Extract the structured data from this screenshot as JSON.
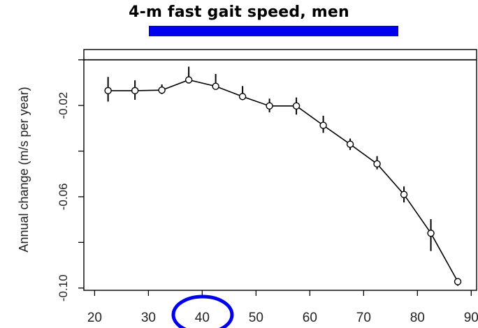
{
  "title": "4-m fast gait speed, men",
  "colors": {
    "highlight": "#0000ee",
    "ink": "#000000",
    "background": "#ffffff"
  },
  "chart_data": {
    "type": "line",
    "title": "4-m fast gait speed, men",
    "xlabel": "",
    "ylabel": "Annual change (m/s per year)",
    "xlim": [
      18,
      91
    ],
    "ylim": [
      -0.101,
      0.0045
    ],
    "xticks": [
      20,
      30,
      40,
      50,
      60,
      70,
      80,
      90
    ],
    "xtick_labels": [
      "20",
      "30",
      "40",
      "50",
      "60",
      "70",
      "80",
      "90"
    ],
    "yticks": [
      -0.02,
      -0.06,
      -0.1
    ],
    "ytick_labels": [
      "-0.02",
      "-0.06",
      "-0.10"
    ],
    "reference_line_y": 0,
    "grid": false,
    "marker": "open-circle",
    "annotations": {
      "underline_title": true,
      "circled_xtick": "40"
    },
    "series": [
      {
        "x": [
          22.5,
          27.5,
          32.5,
          37.5,
          42.5,
          47.5,
          52.5,
          57.5,
          62.5,
          67.5,
          72.5,
          77.5,
          82.5,
          87.5
        ],
        "y": [
          -0.0135,
          -0.0135,
          -0.0133,
          -0.0088,
          -0.0116,
          -0.0161,
          -0.0202,
          -0.0202,
          -0.0287,
          -0.037,
          -0.0456,
          -0.059,
          -0.076,
          -0.0972
        ],
        "ci_low": [
          -0.0183,
          -0.0175,
          -0.015,
          -0.0085,
          -0.0118,
          -0.0175,
          -0.023,
          -0.024,
          -0.032,
          -0.0395,
          -0.048,
          -0.0625,
          -0.0838,
          -0.099
        ],
        "ci_high": [
          -0.0075,
          -0.009,
          -0.0108,
          -0.003,
          -0.0062,
          -0.0115,
          -0.017,
          -0.0165,
          -0.0245,
          -0.0345,
          -0.0422,
          -0.0555,
          -0.0698,
          -0.096
        ]
      }
    ]
  }
}
